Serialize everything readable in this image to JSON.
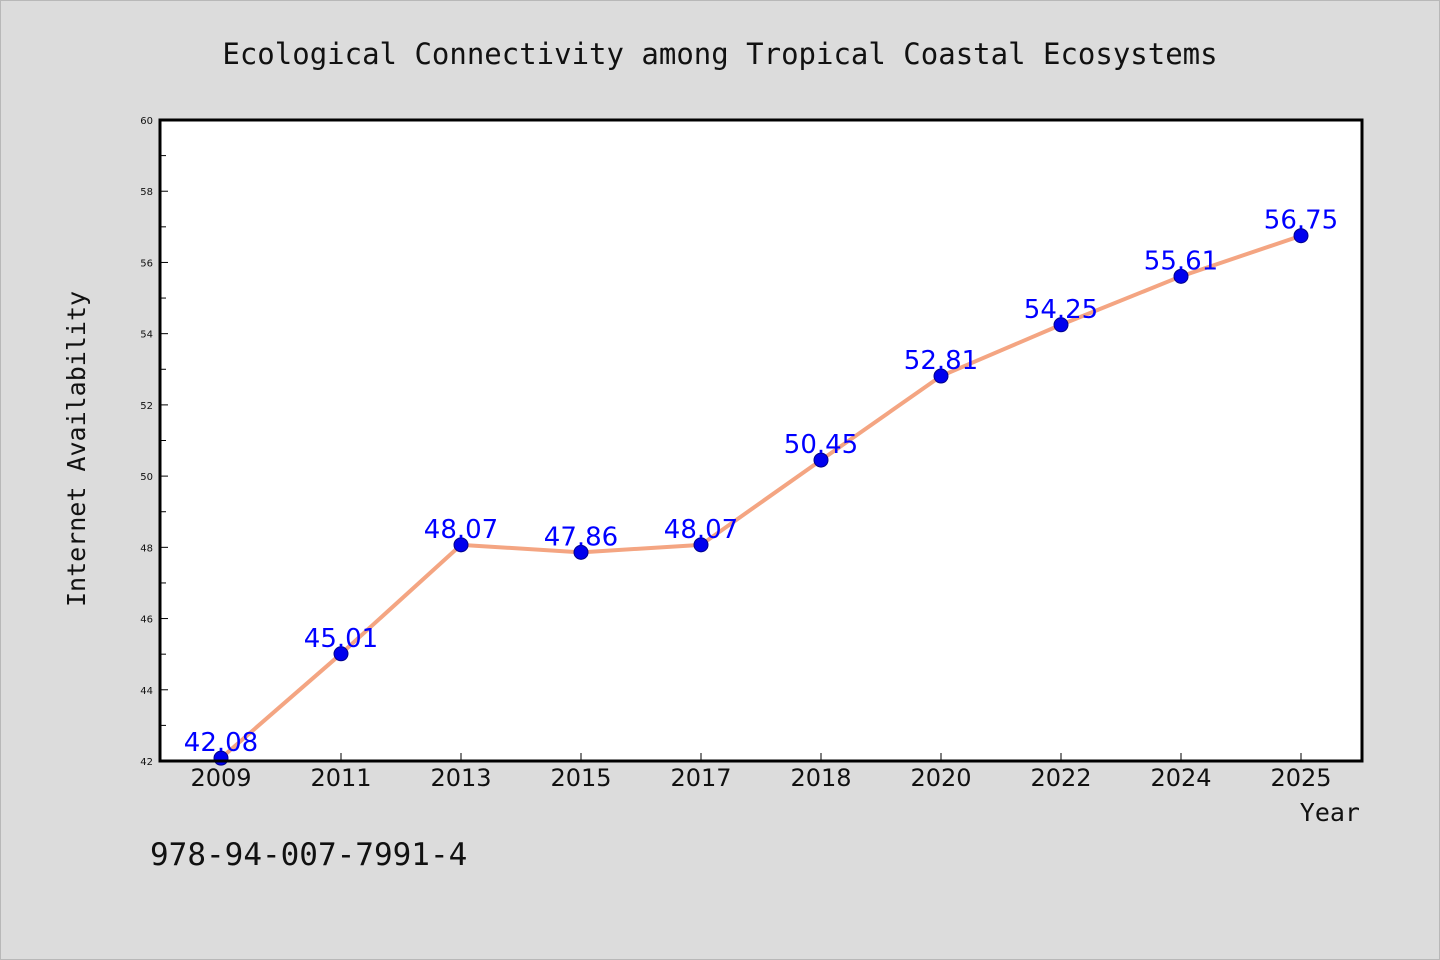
{
  "colors": {
    "background": "#dcdcdc",
    "plot_background": "#ffffff",
    "line": "#f4a582",
    "marker": "#0000ee",
    "data_label": "#0000ff",
    "axis": "#000000"
  },
  "chart_data": {
    "type": "line",
    "title": "Ecological Connectivity among Tropical Coastal Ecosystems",
    "xlabel": "Year",
    "ylabel": "Internet Availability",
    "categories": [
      "2009",
      "2011",
      "2013",
      "2015",
      "2017",
      "2018",
      "2020",
      "2022",
      "2024",
      "2025"
    ],
    "series": [
      {
        "values": [
          42.08,
          45.01,
          48.07,
          47.86,
          48.07,
          50.45,
          52.81,
          54.25,
          55.61,
          56.75
        ],
        "labels": [
          "42.08",
          "45.01",
          "48.07",
          "47.86",
          "48.07",
          "50.45",
          "52.81",
          "54.25",
          "55.61",
          "56.75"
        ]
      }
    ],
    "ylim": [
      42,
      60
    ],
    "yticks": [
      "42",
      "44",
      "46",
      "48",
      "50",
      "52",
      "54",
      "56",
      "58",
      "60"
    ],
    "grid": false,
    "legend": "none"
  },
  "footer": {
    "code": "978-94-007-7991-4"
  }
}
